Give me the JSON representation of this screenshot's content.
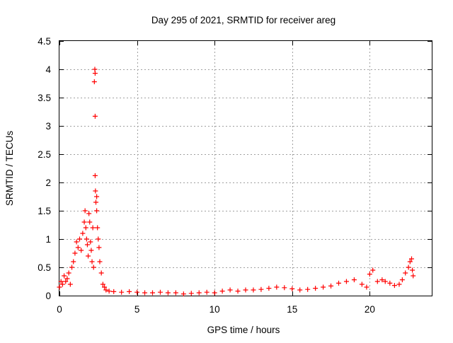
{
  "chart_data": {
    "type": "scatter",
    "title": "Day 295 of 2021, SRMTID for receiver areg",
    "xlabel": "GPS time / hours",
    "ylabel": "SRMTID / TECUs",
    "xlim": [
      0,
      24
    ],
    "ylim": [
      0,
      4.5
    ],
    "x_ticks": [
      0,
      5,
      10,
      15,
      20
    ],
    "x_tick_labels": [
      "0",
      "5",
      "10",
      "15",
      "20"
    ],
    "y_ticks": [
      0,
      0.5,
      1,
      1.5,
      2,
      2.5,
      3,
      3.5,
      4,
      4.5
    ],
    "y_tick_labels": [
      "0",
      "0.5",
      "1",
      "1.5",
      "2",
      "2.5",
      "3",
      "3.5",
      "4",
      "4.5"
    ],
    "grid": true,
    "marker": "+",
    "series": [
      {
        "name": "areg",
        "color": "#ff0000",
        "x": [
          0.0,
          0.1,
          0.2,
          0.3,
          0.4,
          0.5,
          0.6,
          0.7,
          0.8,
          0.9,
          1.0,
          1.1,
          1.2,
          1.3,
          1.4,
          1.5,
          1.6,
          1.65,
          1.7,
          1.75,
          1.8,
          1.85,
          1.9,
          1.95,
          2.0,
          2.05,
          2.1,
          2.15,
          2.2,
          2.25,
          2.28,
          2.3,
          2.3,
          2.3,
          2.32,
          2.35,
          2.4,
          2.4,
          2.45,
          2.5,
          2.55,
          2.6,
          2.7,
          2.8,
          2.9,
          3.0,
          3.2,
          3.5,
          4.0,
          4.5,
          5.0,
          5.5,
          6.0,
          6.5,
          7.0,
          7.5,
          8.0,
          8.5,
          9.0,
          9.5,
          10.0,
          10.5,
          11.0,
          11.5,
          12.0,
          12.5,
          13.0,
          13.5,
          14.0,
          14.5,
          15.0,
          15.5,
          16.0,
          16.5,
          17.0,
          17.5,
          18.0,
          18.5,
          19.0,
          19.5,
          19.8,
          20.0,
          20.2,
          20.5,
          20.8,
          21.0,
          21.3,
          21.6,
          21.9,
          22.1,
          22.3,
          22.5,
          22.6,
          22.7,
          22.75,
          22.8
        ],
        "y": [
          0.15,
          0.25,
          0.2,
          0.35,
          0.25,
          0.3,
          0.4,
          0.2,
          0.5,
          0.6,
          0.75,
          0.95,
          0.85,
          1.0,
          0.8,
          1.1,
          1.3,
          1.5,
          1.2,
          1.0,
          0.9,
          0.7,
          1.45,
          1.3,
          0.95,
          0.8,
          0.6,
          1.2,
          0.5,
          3.78,
          4.0,
          3.93,
          3.17,
          2.12,
          1.85,
          1.65,
          1.75,
          1.5,
          1.2,
          1.0,
          0.85,
          0.6,
          0.4,
          0.2,
          0.15,
          0.1,
          0.08,
          0.07,
          0.06,
          0.07,
          0.06,
          0.05,
          0.05,
          0.06,
          0.05,
          0.05,
          0.03,
          0.04,
          0.05,
          0.06,
          0.05,
          0.08,
          0.1,
          0.08,
          0.1,
          0.1,
          0.11,
          0.13,
          0.15,
          0.14,
          0.12,
          0.1,
          0.11,
          0.13,
          0.15,
          0.17,
          0.22,
          0.25,
          0.28,
          0.2,
          0.15,
          0.38,
          0.45,
          0.25,
          0.28,
          0.25,
          0.22,
          0.18,
          0.2,
          0.28,
          0.4,
          0.5,
          0.6,
          0.65,
          0.45,
          0.35
        ]
      }
    ]
  }
}
